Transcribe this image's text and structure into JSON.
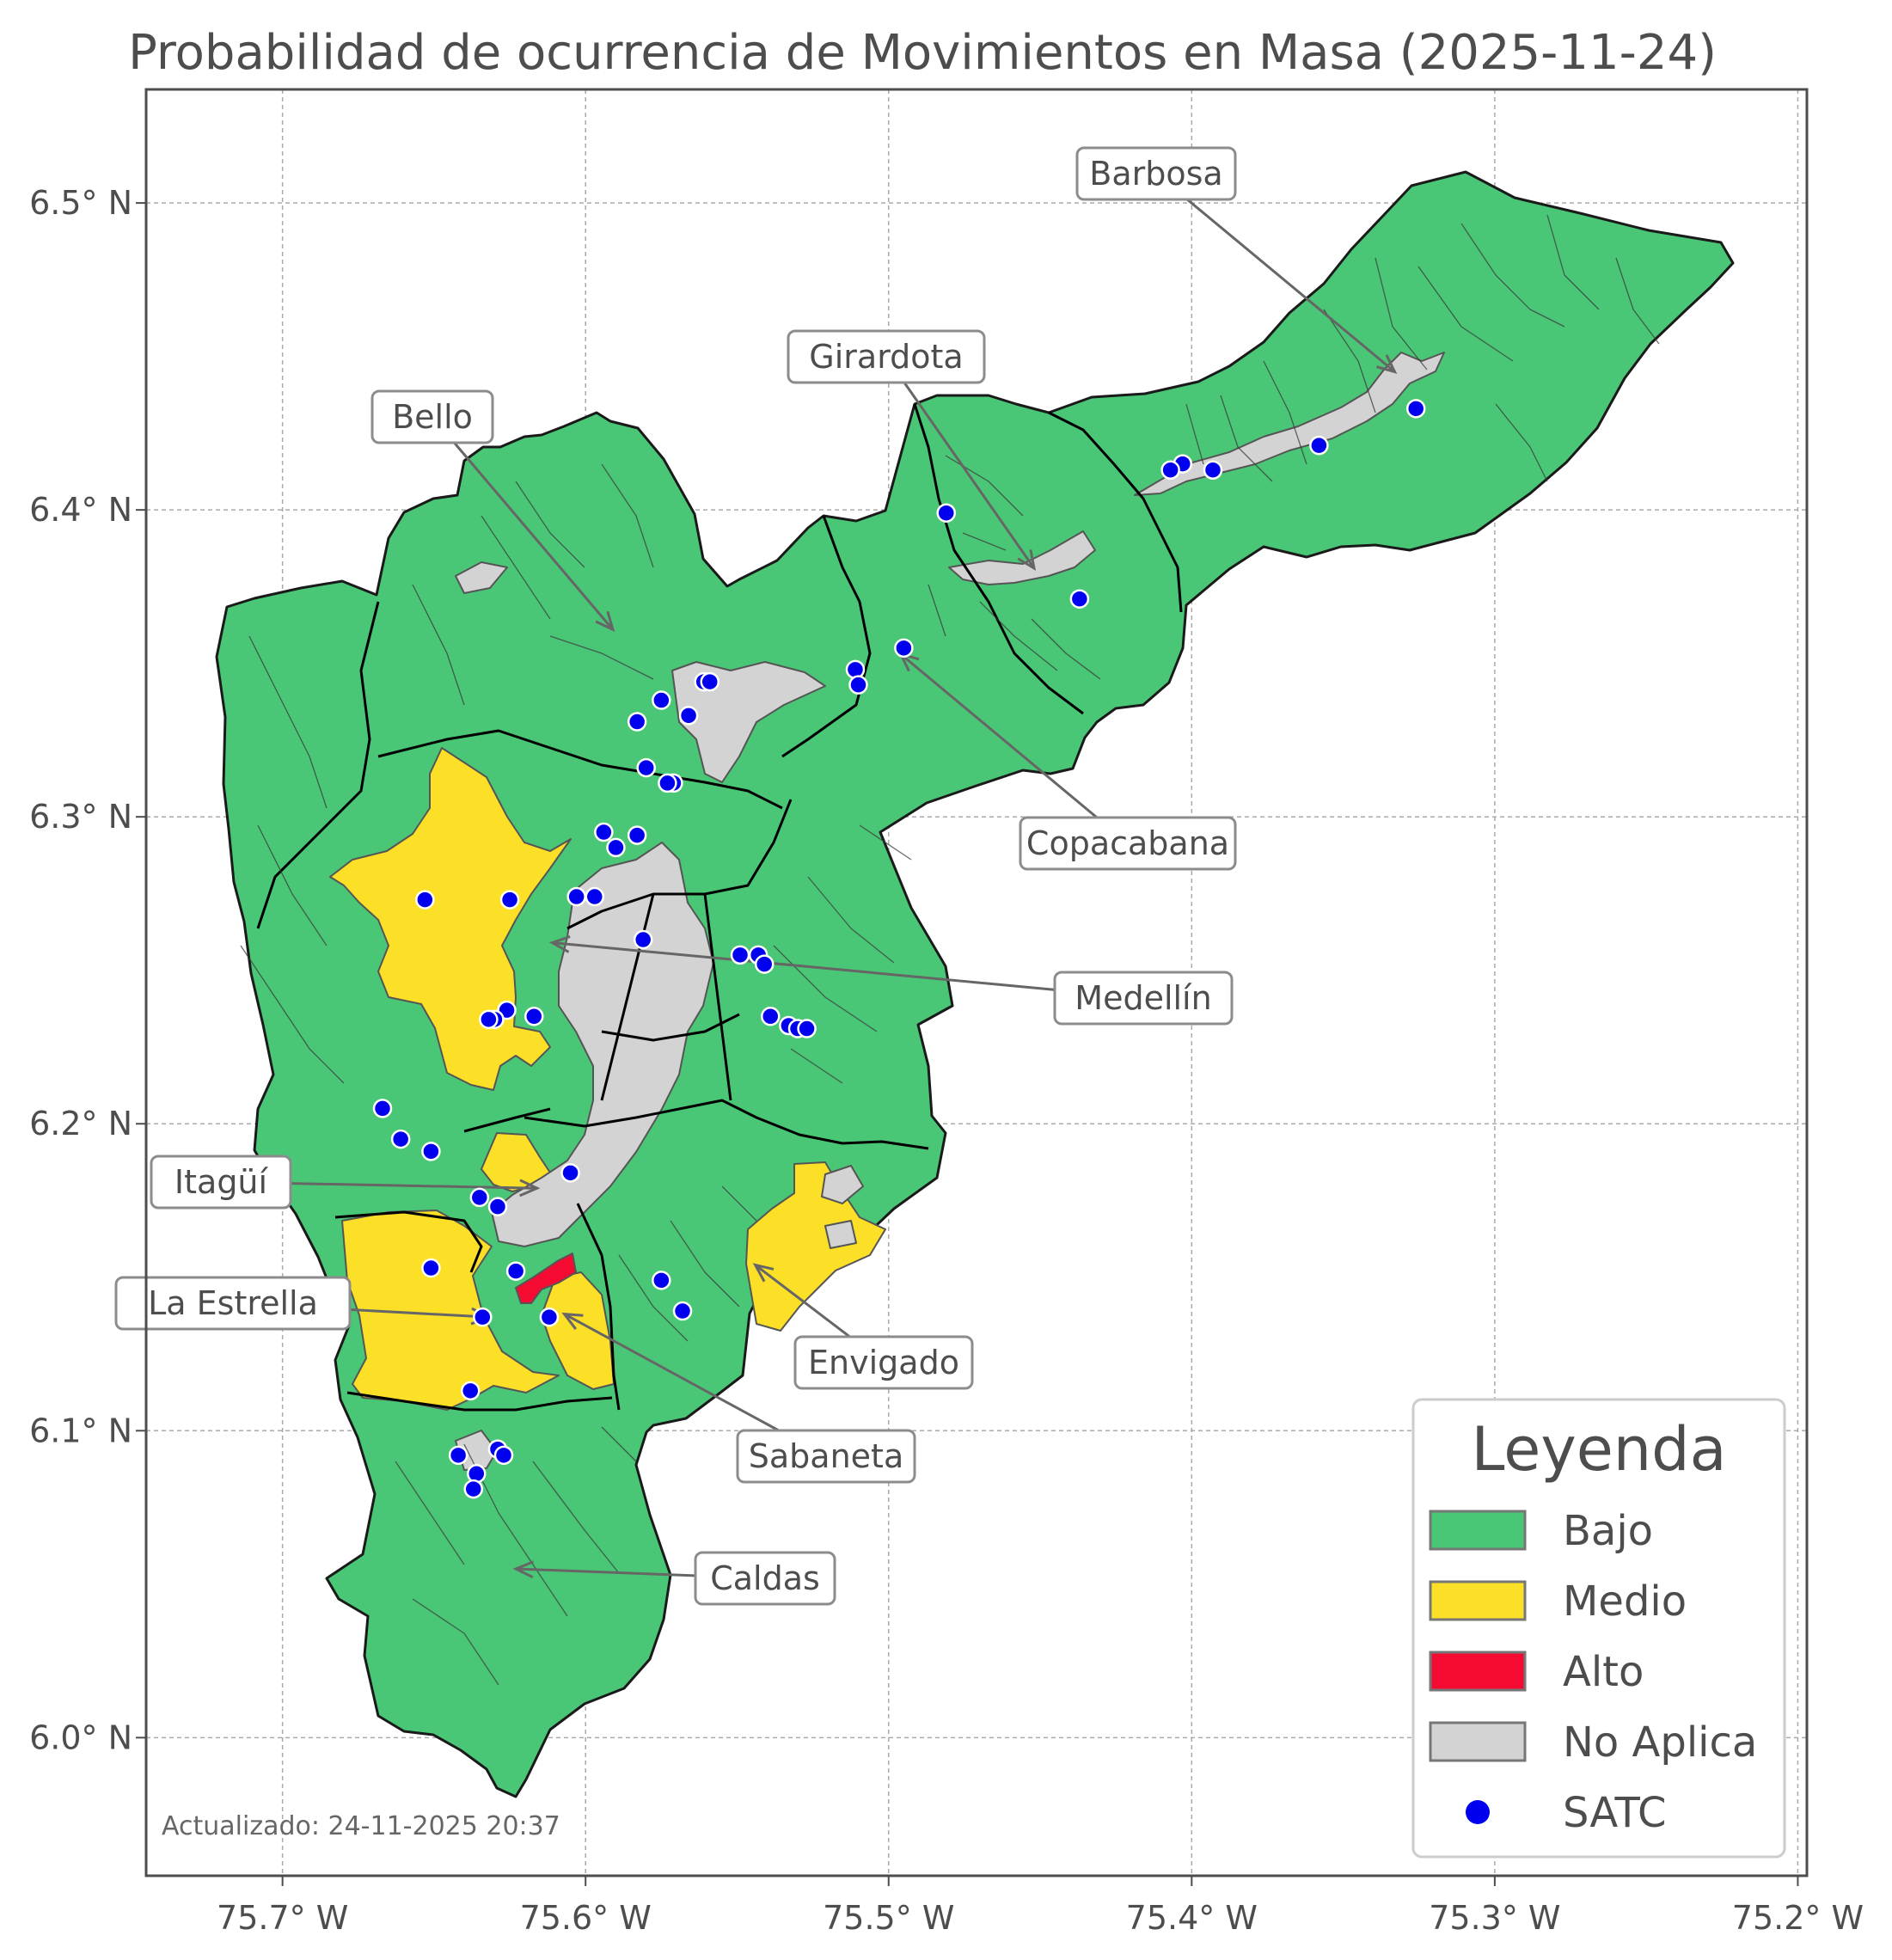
{
  "map": {
    "title": "Probabilidad de ocurrencia de Movimientos en Masa (2025-11-24)",
    "updated": "Actualizado: 24-11-2025 20:37",
    "x_ticks": [
      {
        "value": -75.7,
        "label": "75.7° W"
      },
      {
        "value": -75.6,
        "label": "75.6° W"
      },
      {
        "value": -75.5,
        "label": "75.5° W"
      },
      {
        "value": -75.4,
        "label": "75.4° W"
      },
      {
        "value": -75.3,
        "label": "75.3° W"
      },
      {
        "value": -75.2,
        "label": "75.2° W"
      }
    ],
    "y_ticks": [
      {
        "value": 6.0,
        "label": "6.0° N"
      },
      {
        "value": 6.1,
        "label": "6.1° N"
      },
      {
        "value": 6.2,
        "label": "6.2° N"
      },
      {
        "value": 6.3,
        "label": "6.3° N"
      },
      {
        "value": 6.4,
        "label": "6.4° N"
      },
      {
        "value": 6.5,
        "label": "6.5° N"
      }
    ],
    "lon_range": [
      -75.745,
      -75.197
    ],
    "lat_range": [
      5.955,
      6.537
    ],
    "grid": true,
    "colors": {
      "bajo": "#4ac776",
      "medio": "#fcdf27",
      "alto": "#f50a32",
      "no_aplica": "#d3d3d3",
      "satc": "#0000ee",
      "border": "#1a1a1a",
      "callout": "#666666"
    },
    "municipalities": [
      {
        "name": "Barbosa",
        "lon": -75.333,
        "lat": 6.445
      },
      {
        "name": "Girardota",
        "lon": -75.452,
        "lat": 6.381
      },
      {
        "name": "Bello",
        "lon": -75.591,
        "lat": 6.361
      },
      {
        "name": "Copacabana",
        "lon": -75.496,
        "lat": 6.353
      },
      {
        "name": "Medellín",
        "lon": -75.611,
        "lat": 6.259
      },
      {
        "name": "Itagüí",
        "lon": -75.616,
        "lat": 6.179
      },
      {
        "name": "Envigado",
        "lon": -75.544,
        "lat": 6.154
      },
      {
        "name": "La Estrella",
        "lon": -75.632,
        "lat": 6.137
      },
      {
        "name": "Sabaneta",
        "lon": -75.607,
        "lat": 6.138
      },
      {
        "name": "Caldas",
        "lon": -75.623,
        "lat": 6.055
      }
    ],
    "satc_points": [
      [
        -75.326,
        6.433
      ],
      [
        -75.358,
        6.421
      ],
      [
        -75.393,
        6.413
      ],
      [
        -75.403,
        6.415
      ],
      [
        -75.407,
        6.413
      ],
      [
        -75.481,
        6.399
      ],
      [
        -75.437,
        6.371
      ],
      [
        -75.495,
        6.355
      ],
      [
        -75.511,
        6.348
      ],
      [
        -75.51,
        6.343
      ],
      [
        -75.561,
        6.344
      ],
      [
        -75.559,
        6.344
      ],
      [
        -75.566,
        6.333
      ],
      [
        -75.575,
        6.338
      ],
      [
        -75.583,
        6.331
      ],
      [
        -75.58,
        6.316
      ],
      [
        -75.571,
        6.311
      ],
      [
        -75.573,
        6.311
      ],
      [
        -75.594,
        6.295
      ],
      [
        -75.59,
        6.29
      ],
      [
        -75.583,
        6.294
      ],
      [
        -75.653,
        6.273
      ],
      [
        -75.625,
        6.273
      ],
      [
        -75.603,
        6.274
      ],
      [
        -75.597,
        6.274
      ],
      [
        -75.581,
        6.26
      ],
      [
        -75.549,
        6.255
      ],
      [
        -75.543,
        6.255
      ],
      [
        -75.541,
        6.252
      ],
      [
        -75.539,
        6.235
      ],
      [
        -75.533,
        6.232
      ],
      [
        -75.53,
        6.231
      ],
      [
        -75.527,
        6.231
      ],
      [
        -75.626,
        6.237
      ],
      [
        -75.63,
        6.234
      ],
      [
        -75.632,
        6.234
      ],
      [
        -75.617,
        6.235
      ],
      [
        -75.667,
        6.205
      ],
      [
        -75.661,
        6.195
      ],
      [
        -75.651,
        6.191
      ],
      [
        -75.605,
        6.184
      ],
      [
        -75.635,
        6.176
      ],
      [
        -75.629,
        6.173
      ],
      [
        -75.651,
        6.153
      ],
      [
        -75.623,
        6.152
      ],
      [
        -75.575,
        6.149
      ],
      [
        -75.568,
        6.139
      ],
      [
        -75.634,
        6.137
      ],
      [
        -75.612,
        6.137
      ],
      [
        -75.638,
        6.113
      ],
      [
        -75.642,
        6.092
      ],
      [
        -75.629,
        6.094
      ],
      [
        -75.627,
        6.092
      ],
      [
        -75.636,
        6.086
      ],
      [
        -75.637,
        6.081
      ]
    ]
  },
  "legend": {
    "title": "Leyenda",
    "items": [
      {
        "label": "Bajo",
        "kind": "patch",
        "color": "#4ac776"
      },
      {
        "label": "Medio",
        "kind": "patch",
        "color": "#fcdf27"
      },
      {
        "label": "Alto",
        "kind": "patch",
        "color": "#f50a32"
      },
      {
        "label": "No Aplica",
        "kind": "patch",
        "color": "#d3d3d3"
      },
      {
        "label": "SATC",
        "kind": "dot",
        "color": "#0000ee"
      }
    ]
  }
}
